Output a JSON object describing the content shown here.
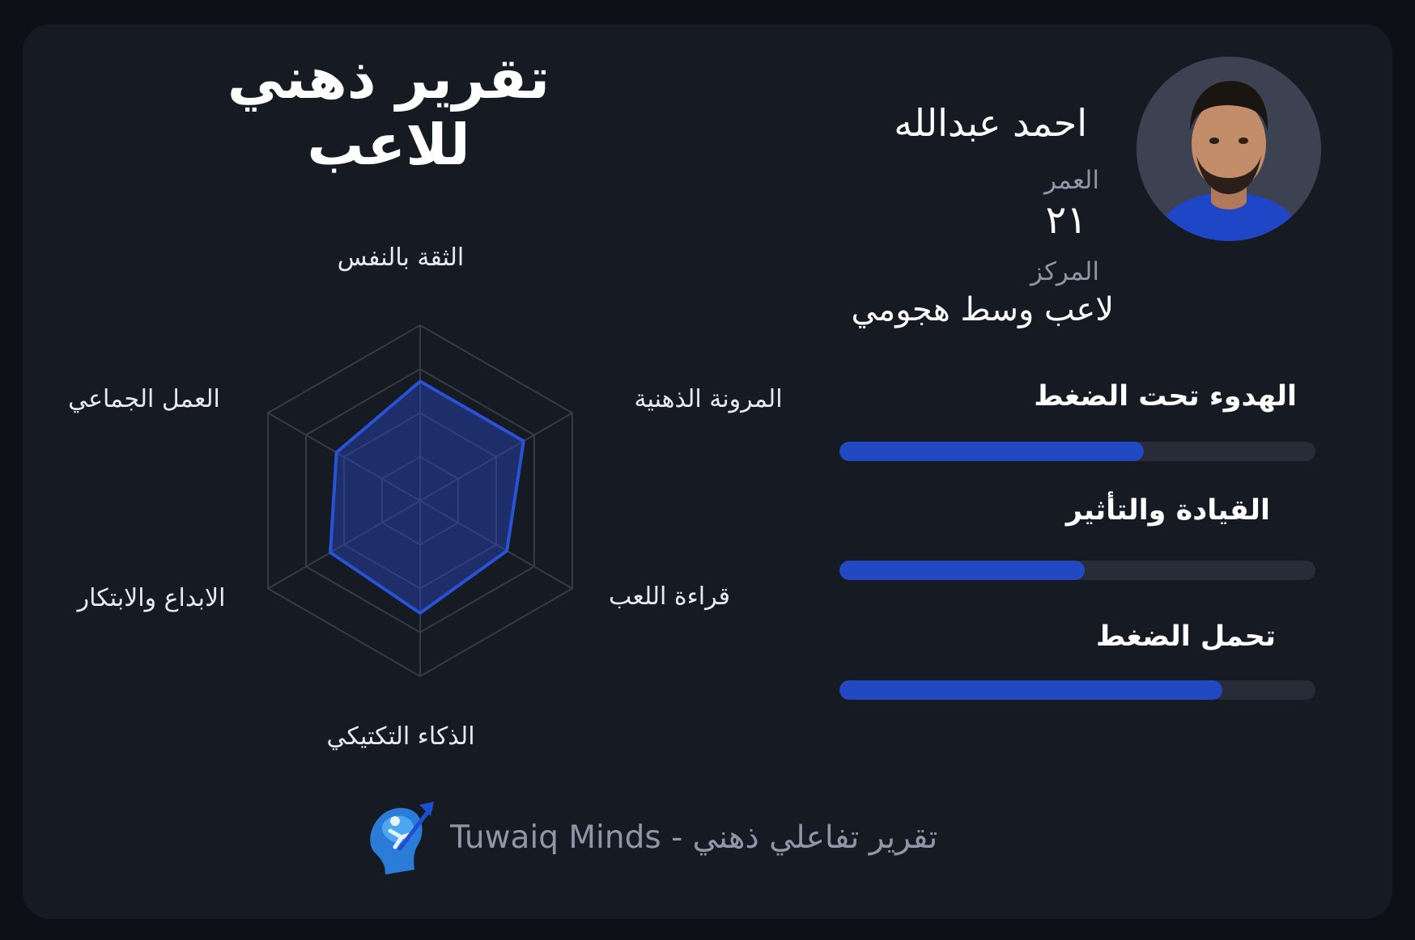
{
  "title": "تقرير ذهني للاعب",
  "player": {
    "name": "احمد عبدالله",
    "age_label": "العمر",
    "age_value": "٢١",
    "position_label": "المركز",
    "position_value": "لاعب وسط هجومي"
  },
  "radar": {
    "axes": [
      "الثقة بالنفس",
      "المرونة الذهنية",
      "قراءة اللعب",
      "الذكاء التكتيكي",
      "الابداع والابتكار",
      "العمل الجماعي"
    ],
    "values": [
      0.68,
      0.68,
      0.57,
      0.64,
      0.59,
      0.55
    ],
    "max": 1,
    "rings": 4,
    "colors": {
      "fill": "#2548c0",
      "stroke": "#2a52d4",
      "grid": "#363b47"
    }
  },
  "metrics": [
    {
      "label": "الهدوء تحت الضغط",
      "value": 0.64
    },
    {
      "label": "القيادة والتأثير",
      "value": 0.515
    },
    {
      "label": "تحمل الضغط",
      "value": 0.805
    }
  ],
  "footer": {
    "text": "تقرير تفاعلي ذهني - Tuwaiq Minds",
    "logo_icon": "brain-growth-logo"
  },
  "colors": {
    "accent": "#2248c2",
    "background": "#0d1017",
    "card": "#161a23"
  }
}
